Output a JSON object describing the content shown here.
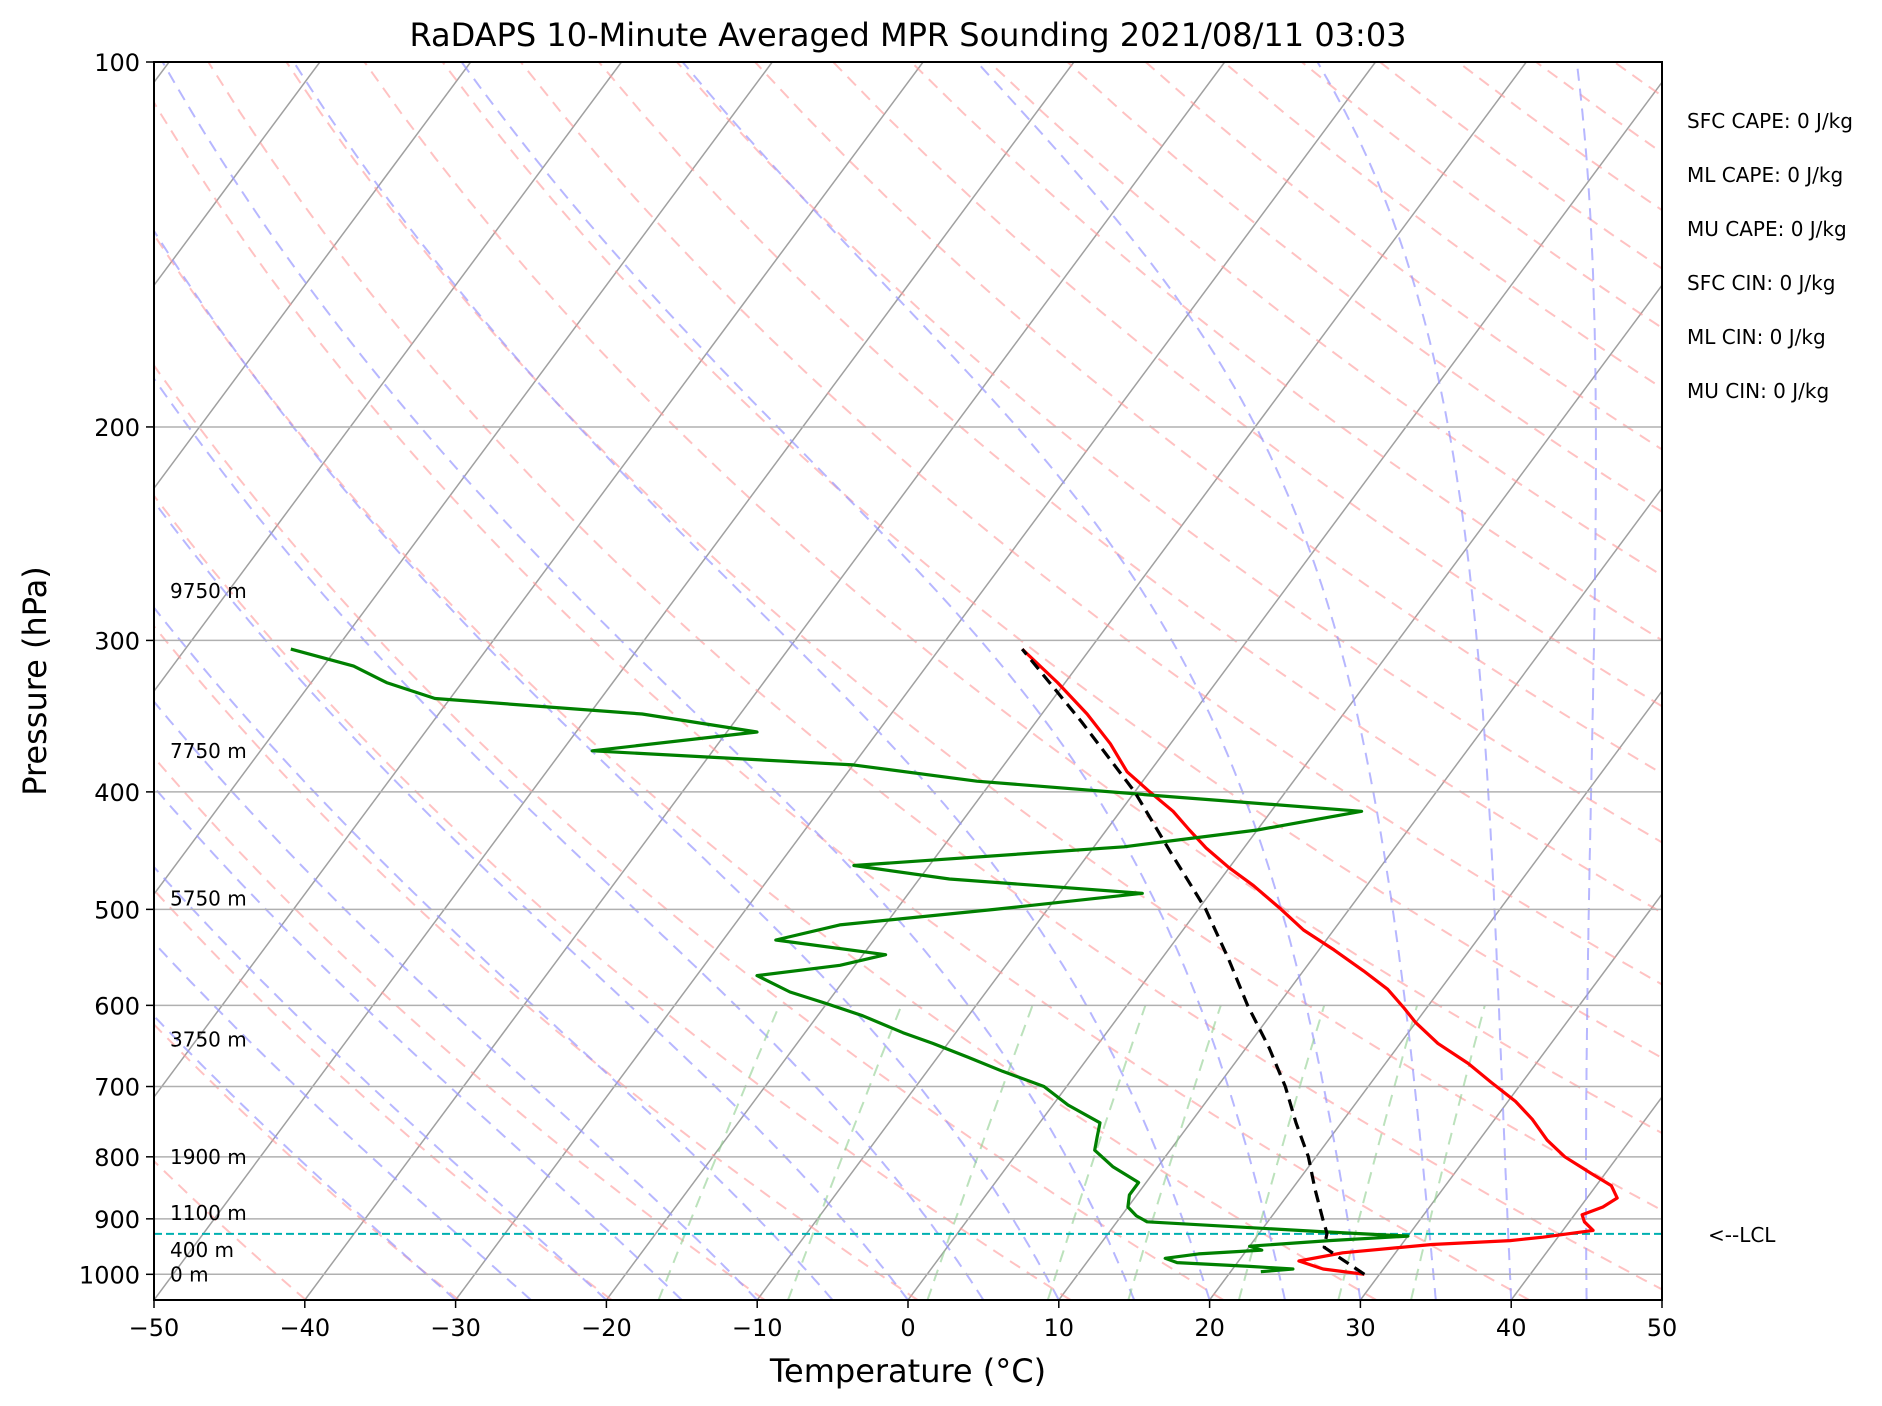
{
  "chart_data": {
    "type": "skew-t",
    "title": "RaDAPS 10-Minute Averaged MPR Sounding 2021/08/11 03:03",
    "xlabel": "Temperature (°C)",
    "ylabel": "Pressure (hPa)",
    "xlim": [
      -50,
      50
    ],
    "ylim": [
      1050,
      100
    ],
    "y_scale": "log",
    "grid": true,
    "x_ticks": [
      -50,
      -40,
      -30,
      -20,
      -10,
      0,
      10,
      20,
      30,
      40,
      50
    ],
    "x_tick_labels": [
      "−50",
      "−40",
      "−30",
      "−20",
      "−10",
      "0",
      "10",
      "20",
      "30",
      "40",
      "50"
    ],
    "y_ticks": [
      100,
      200,
      300,
      400,
      500,
      600,
      700,
      800,
      900,
      1000
    ],
    "y_tick_labels": [
      "100",
      "200",
      "300",
      "400",
      "500",
      "600",
      "700",
      "800",
      "900",
      "1000"
    ],
    "temperature": {
      "color": "#ff0000",
      "points": [
        {
          "p": 1000,
          "t": 29.0
        },
        {
          "p": 990,
          "t": 26.0
        },
        {
          "p": 975,
          "t": 24.0
        },
        {
          "p": 960,
          "t": 26.5
        },
        {
          "p": 945,
          "t": 32.0
        },
        {
          "p": 938,
          "t": 37.0
        },
        {
          "p": 932,
          "t": 39.0
        },
        {
          "p": 920,
          "t": 42.0
        },
        {
          "p": 905,
          "t": 41.0
        },
        {
          "p": 893,
          "t": 40.5
        },
        {
          "p": 880,
          "t": 41.5
        },
        {
          "p": 865,
          "t": 42.0
        },
        {
          "p": 845,
          "t": 41.0
        },
        {
          "p": 825,
          "t": 39.0
        },
        {
          "p": 800,
          "t": 36.5
        },
        {
          "p": 775,
          "t": 34.5
        },
        {
          "p": 745,
          "t": 32.5
        },
        {
          "p": 720,
          "t": 30.5
        },
        {
          "p": 695,
          "t": 28.0
        },
        {
          "p": 670,
          "t": 25.5
        },
        {
          "p": 645,
          "t": 22.5
        },
        {
          "p": 620,
          "t": 20.0
        },
        {
          "p": 603,
          "t": 18.5
        },
        {
          "p": 582,
          "t": 16.5
        },
        {
          "p": 562,
          "t": 14.0
        },
        {
          "p": 540,
          "t": 11.0
        },
        {
          "p": 520,
          "t": 8.0
        },
        {
          "p": 500,
          "t": 5.5
        },
        {
          "p": 478,
          "t": 2.5
        },
        {
          "p": 462,
          "t": 0.0
        },
        {
          "p": 445,
          "t": -2.5
        },
        {
          "p": 430,
          "t": -4.5
        },
        {
          "p": 415,
          "t": -6.5
        },
        {
          "p": 400,
          "t": -9.0
        },
        {
          "p": 385,
          "t": -11.5
        },
        {
          "p": 365,
          "t": -14.0
        },
        {
          "p": 345,
          "t": -17.0
        },
        {
          "p": 325,
          "t": -20.5
        },
        {
          "p": 305,
          "t": -24.5
        }
      ]
    },
    "dewpoint": {
      "color": "#008000",
      "points": [
        {
          "p": 995,
          "t": 22.0
        },
        {
          "p": 990,
          "t": 24.0
        },
        {
          "p": 985,
          "t": 21.0
        },
        {
          "p": 978,
          "t": 16.0
        },
        {
          "p": 970,
          "t": 15.0
        },
        {
          "p": 962,
          "t": 17.0
        },
        {
          "p": 955,
          "t": 21.0
        },
        {
          "p": 948,
          "t": 20.0
        },
        {
          "p": 938,
          "t": 25.0
        },
        {
          "p": 930,
          "t": 30.0
        },
        {
          "p": 922,
          "t": 24.0
        },
        {
          "p": 905,
          "t": 12.0
        },
        {
          "p": 895,
          "t": 11.0
        },
        {
          "p": 880,
          "t": 10.0
        },
        {
          "p": 860,
          "t": 9.5
        },
        {
          "p": 840,
          "t": 9.5
        },
        {
          "p": 815,
          "t": 7.0
        },
        {
          "p": 790,
          "t": 5.0
        },
        {
          "p": 770,
          "t": 4.5
        },
        {
          "p": 750,
          "t": 4.0
        },
        {
          "p": 725,
          "t": 1.0
        },
        {
          "p": 700,
          "t": -1.5
        },
        {
          "p": 680,
          "t": -5.0
        },
        {
          "p": 662,
          "t": -8.0
        },
        {
          "p": 645,
          "t": -11.0
        },
        {
          "p": 632,
          "t": -13.5
        },
        {
          "p": 612,
          "t": -17.0
        },
        {
          "p": 598,
          "t": -20.0
        },
        {
          "p": 585,
          "t": -23.0
        },
        {
          "p": 567,
          "t": -26.0
        },
        {
          "p": 556,
          "t": -21.0
        },
        {
          "p": 545,
          "t": -18.5
        },
        {
          "p": 530,
          "t": -26.5
        },
        {
          "p": 515,
          "t": -23.0
        },
        {
          "p": 500,
          "t": -13.5
        },
        {
          "p": 485,
          "t": -4.5
        },
        {
          "p": 472,
          "t": -18.0
        },
        {
          "p": 460,
          "t": -25.0
        },
        {
          "p": 444,
          "t": -8.0
        },
        {
          "p": 430,
          "t": 0.0
        },
        {
          "p": 415,
          "t": 6.0
        },
        {
          "p": 404,
          "t": -7.0
        },
        {
          "p": 392,
          "t": -21.0
        },
        {
          "p": 380,
          "t": -30.0
        },
        {
          "p": 370,
          "t": -48.0
        },
        {
          "p": 357,
          "t": -38.0
        },
        {
          "p": 345,
          "t": -46.5
        },
        {
          "p": 335,
          "t": -61.0
        },
        {
          "p": 325,
          "t": -65.0
        },
        {
          "p": 315,
          "t": -68.0
        },
        {
          "p": 305,
          "t": -73.0
        }
      ]
    },
    "parcel_profile": {
      "color": "#000000",
      "style": "dashed",
      "points": [
        {
          "p": 1000,
          "t": 29.0
        },
        {
          "p": 950,
          "t": 25.0
        },
        {
          "p": 925,
          "t": 24.5
        },
        {
          "p": 900,
          "t": 23.5
        },
        {
          "p": 850,
          "t": 21.5
        },
        {
          "p": 800,
          "t": 19.5
        },
        {
          "p": 750,
          "t": 17.0
        },
        {
          "p": 700,
          "t": 14.5
        },
        {
          "p": 650,
          "t": 11.5
        },
        {
          "p": 600,
          "t": 8.0
        },
        {
          "p": 550,
          "t": 4.5
        },
        {
          "p": 500,
          "t": 0.5
        },
        {
          "p": 450,
          "t": -4.5
        },
        {
          "p": 400,
          "t": -10.0
        },
        {
          "p": 350,
          "t": -17.0
        },
        {
          "p": 305,
          "t": -24.5
        }
      ]
    },
    "lcl": {
      "pressure": 926,
      "label": "<--LCL",
      "color": "#00b0b0"
    },
    "height_labels": [
      {
        "p": 1000,
        "label": "0 m"
      },
      {
        "p": 955,
        "label": "400 m"
      },
      {
        "p": 890,
        "label": "1100 m"
      },
      {
        "p": 800,
        "label": "1900 m"
      },
      {
        "p": 640,
        "label": "3750 m"
      },
      {
        "p": 490,
        "label": "5750 m"
      },
      {
        "p": 370,
        "label": "7750 m"
      },
      {
        "p": 273,
        "label": "9750 m"
      }
    ],
    "indices": [
      "SFC CAPE: 0 J/kg",
      "ML CAPE: 0 J/kg",
      "MU CAPE: 0 J/kg",
      "SFC CIN: 0 J/kg",
      "ML CIN: 0 J/kg",
      "MU CIN: 0 J/kg"
    ],
    "reference_line_colors": {
      "isotherms": "#a0a0a0",
      "dry_adiabats": "#ff9999",
      "moist_adiabats": "#9999ff",
      "mixing_ratio": "#8fcf8f"
    }
  }
}
